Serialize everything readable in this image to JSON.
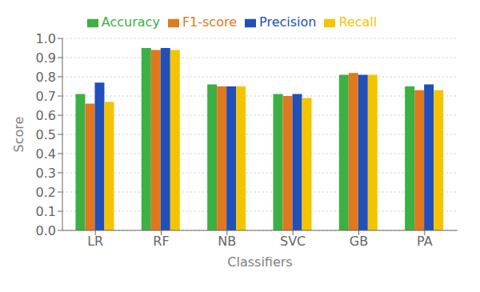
{
  "chart_data": {
    "type": "bar",
    "categories": [
      "LR",
      "RF",
      "NB",
      "SVC",
      "GB",
      "PA"
    ],
    "series": [
      {
        "name": "Accuracy",
        "color": "#3cb043",
        "values": [
          0.71,
          0.95,
          0.76,
          0.71,
          0.81,
          0.75
        ]
      },
      {
        "name": "F1-score",
        "color": "#e07820",
        "values": [
          0.66,
          0.94,
          0.75,
          0.7,
          0.82,
          0.73
        ]
      },
      {
        "name": "Precision",
        "color": "#2050b8",
        "values": [
          0.77,
          0.95,
          0.75,
          0.71,
          0.81,
          0.76
        ]
      },
      {
        "name": "Recall",
        "color": "#f5c400",
        "values": [
          0.67,
          0.94,
          0.75,
          0.69,
          0.81,
          0.73
        ]
      }
    ],
    "xlabel": "Classifiers",
    "ylabel": "Score",
    "ylim": [
      0,
      1.0
    ],
    "yticks": [
      {
        "value": 0,
        "label": "0.0"
      },
      0.1,
      0.2,
      0.3,
      0.4,
      0.5,
      0.6,
      0.7,
      0.8,
      0.9,
      {
        "value": 1,
        "label": "1.0"
      }
    ],
    "grid": "y",
    "legend": "top"
  }
}
